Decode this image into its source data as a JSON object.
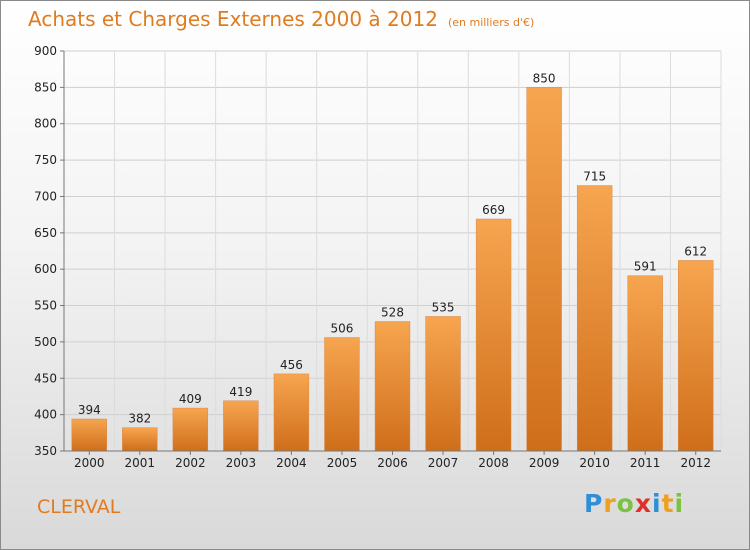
{
  "title": "Achats et Charges Externes 2000 à 2012",
  "subtitle": "(en milliers d'€)",
  "city": "CLERVAL",
  "logo": {
    "letters": [
      "P",
      "r",
      "o",
      "x",
      "i",
      "t",
      "i"
    ],
    "colors": [
      "#2e8fd6",
      "#f0a020",
      "#7cc242",
      "#e0302a",
      "#2e8fd6",
      "#f0a020",
      "#7cc242"
    ]
  },
  "colors": {
    "bar_top": "#f7a550",
    "bar_bottom": "#cf6e1a",
    "title": "#e07b20"
  },
  "chart_data": {
    "type": "bar",
    "categories": [
      "2000",
      "2001",
      "2002",
      "2003",
      "2004",
      "2005",
      "2006",
      "2007",
      "2008",
      "2009",
      "2010",
      "2011",
      "2012"
    ],
    "values": [
      394,
      382,
      409,
      419,
      456,
      506,
      528,
      535,
      669,
      850,
      715,
      591,
      612
    ],
    "ylim": [
      350,
      900
    ],
    "yticks": [
      350,
      400,
      450,
      500,
      550,
      600,
      650,
      700,
      750,
      800,
      850,
      900
    ],
    "grid": true
  }
}
